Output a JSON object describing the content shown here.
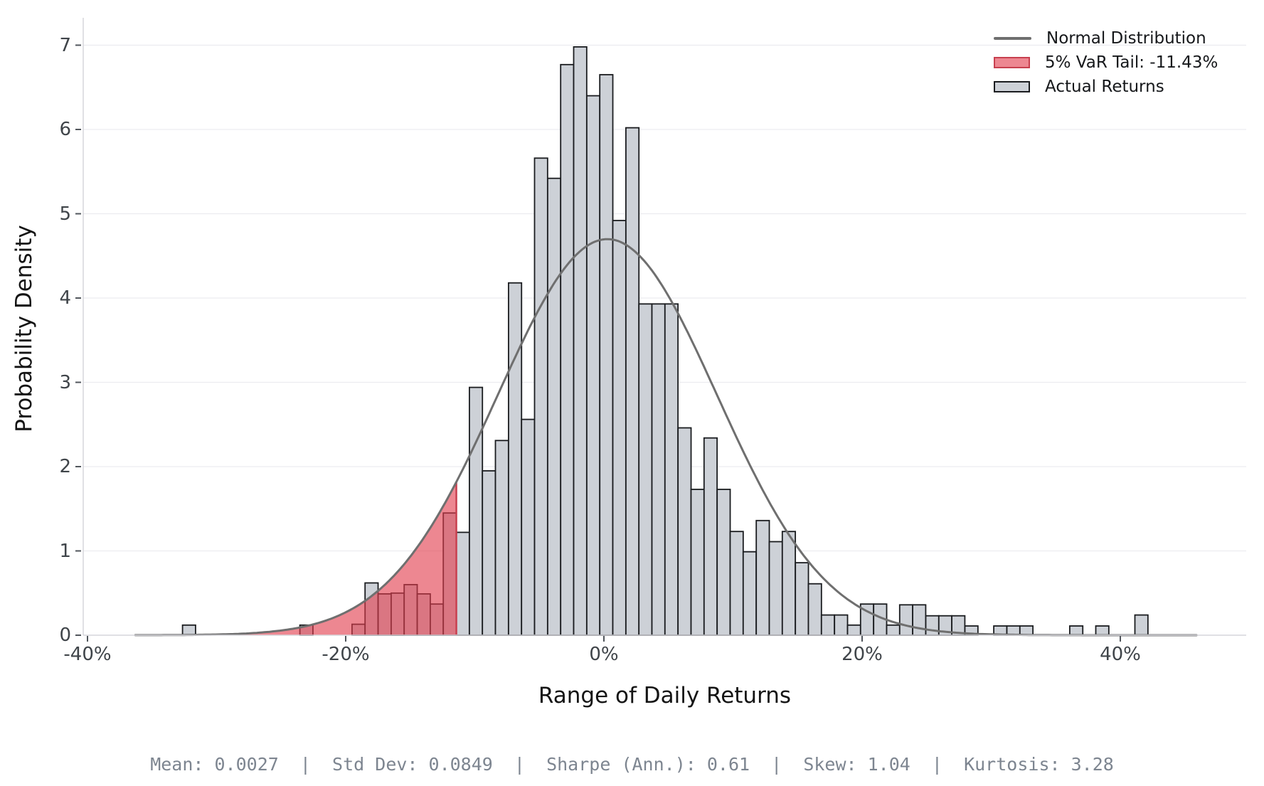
{
  "axes": {
    "y_label": "Probability Density",
    "x_label": "Range of Daily Returns",
    "y_ticks": [
      "0",
      "1",
      "2",
      "3",
      "4",
      "5",
      "6",
      "7"
    ],
    "x_ticks": [
      {
        "pct": -40,
        "label": "-40%"
      },
      {
        "pct": -20,
        "label": "-20%"
      },
      {
        "pct": 0,
        "label": "0%"
      },
      {
        "pct": 20,
        "label": "20%"
      },
      {
        "pct": 40,
        "label": "40%"
      }
    ]
  },
  "legend": {
    "items": [
      {
        "label": "Normal Distribution",
        "swatch": "line"
      },
      {
        "label": "5% VaR Tail: -11.43%",
        "swatch": "red-patch"
      },
      {
        "label": "Actual Returns",
        "swatch": "gray-patch"
      }
    ]
  },
  "footer": {
    "text": "Mean: 0.0027  |  Std Dev: 0.0849  |  Sharpe (Ann.): 0.61  |  Skew: 1.04  |  Kurtosis: 3.28",
    "stats": {
      "mean": "0.0027",
      "std_dev": "0.0849",
      "sharpe_ann": "0.61",
      "skew": "1.04",
      "kurtosis": "3.28"
    }
  },
  "colors": {
    "background": "#ffffff",
    "bar_fill": "#cdd1d7",
    "bar_edge": "#1a1c1f",
    "curve": "#6f6f6f",
    "var_fill": "#e23e4e",
    "var_fill_alpha": 0.62,
    "var_edge": "#c8404f",
    "gridline": "#ececf0",
    "spine": "#d6d6db",
    "tick_mark": "#51565c",
    "tick_label": "#3f4449",
    "axis_label": "#141414",
    "legend_text": "#15171a",
    "footer_text": "#7d8590"
  },
  "chart_data": {
    "type": "bar",
    "subtype": "histogram-with-normal-overlay",
    "title": "",
    "xlabel": "Range of Daily Returns",
    "ylabel": "Probability Density",
    "xlim_pct": [
      -40.3,
      49.8
    ],
    "ylim": [
      0,
      7.32
    ],
    "grid": "horizontal",
    "legend_position": "upper right",
    "bin_width_pct": 1.01,
    "bins": [
      [
        -32.64,
        0.12
      ],
      [
        -23.55,
        0.12
      ],
      [
        -19.51,
        0.13
      ],
      [
        -18.5,
        0.62
      ],
      [
        -17.49,
        0.49
      ],
      [
        -16.48,
        0.5
      ],
      [
        -15.47,
        0.6
      ],
      [
        -14.46,
        0.49
      ],
      [
        -13.45,
        0.37
      ],
      [
        -12.44,
        1.45
      ],
      [
        -11.43,
        1.22
      ],
      [
        -10.42,
        2.94
      ],
      [
        -9.41,
        1.95
      ],
      [
        -8.4,
        2.31
      ],
      [
        -7.39,
        4.18
      ],
      [
        -6.38,
        2.56
      ],
      [
        -5.37,
        5.66
      ],
      [
        -4.36,
        5.42
      ],
      [
        -3.35,
        6.77
      ],
      [
        -2.34,
        6.98
      ],
      [
        -1.33,
        6.4
      ],
      [
        -0.32,
        6.65
      ],
      [
        0.69,
        4.92
      ],
      [
        1.7,
        6.02
      ],
      [
        2.71,
        3.93
      ],
      [
        3.72,
        3.93
      ],
      [
        4.73,
        3.93
      ],
      [
        5.74,
        2.46
      ],
      [
        6.75,
        1.73
      ],
      [
        7.76,
        2.34
      ],
      [
        8.77,
        1.73
      ],
      [
        9.78,
        1.23
      ],
      [
        10.79,
        0.99
      ],
      [
        11.8,
        1.36
      ],
      [
        12.81,
        1.11
      ],
      [
        13.82,
        1.23
      ],
      [
        14.83,
        0.86
      ],
      [
        15.84,
        0.61
      ],
      [
        16.85,
        0.24
      ],
      [
        17.86,
        0.24
      ],
      [
        18.87,
        0.12
      ],
      [
        19.88,
        0.37
      ],
      [
        20.89,
        0.37
      ],
      [
        21.9,
        0.12
      ],
      [
        22.91,
        0.36
      ],
      [
        23.92,
        0.36
      ],
      [
        24.93,
        0.23
      ],
      [
        25.94,
        0.23
      ],
      [
        26.95,
        0.23
      ],
      [
        27.96,
        0.11
      ],
      [
        30.2,
        0.11
      ],
      [
        31.21,
        0.11
      ],
      [
        32.22,
        0.11
      ],
      [
        36.08,
        0.11
      ],
      [
        38.1,
        0.11
      ],
      [
        41.13,
        0.24
      ]
    ],
    "normal_curve": {
      "mean": 0.0027,
      "std_dev": 0.0849,
      "x_range_pct": [
        -36.3,
        46.0
      ]
    },
    "var_tail": {
      "confidence": "5%",
      "threshold_pct": -11.43
    }
  }
}
